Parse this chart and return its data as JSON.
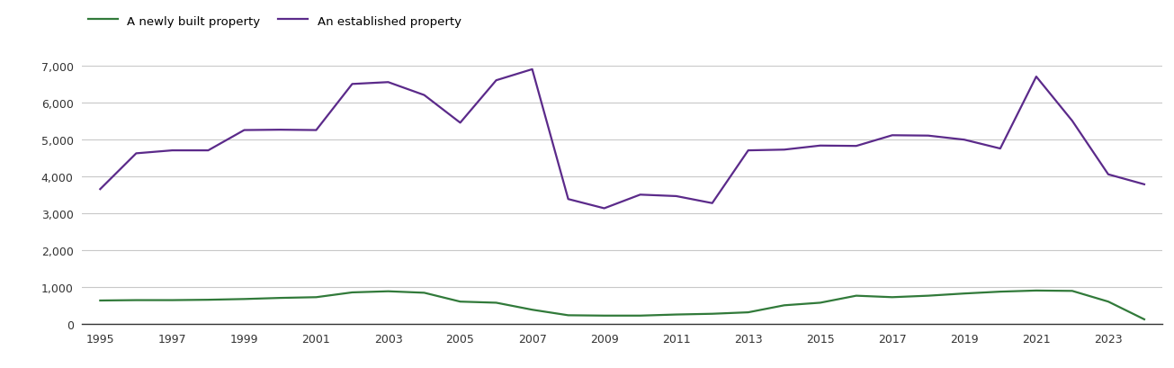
{
  "years": [
    1995,
    1996,
    1997,
    1998,
    1999,
    2000,
    2001,
    2002,
    2003,
    2004,
    2005,
    2006,
    2007,
    2008,
    2009,
    2010,
    2011,
    2012,
    2013,
    2014,
    2015,
    2016,
    2017,
    2018,
    2019,
    2020,
    2021,
    2022,
    2023,
    2024
  ],
  "new_homes": [
    630,
    640,
    640,
    650,
    670,
    700,
    720,
    850,
    880,
    840,
    600,
    570,
    380,
    230,
    220,
    220,
    250,
    270,
    310,
    500,
    570,
    760,
    720,
    760,
    820,
    870,
    900,
    890,
    600,
    120
  ],
  "established_homes": [
    3650,
    4620,
    4700,
    4700,
    5250,
    5260,
    5250,
    6500,
    6550,
    6200,
    5450,
    6600,
    6900,
    3380,
    3130,
    3500,
    3460,
    3270,
    4700,
    4720,
    4830,
    4820,
    5110,
    5100,
    4990,
    4750,
    6700,
    5500,
    4050,
    3780
  ],
  "new_homes_color": "#317a3a",
  "established_homes_color": "#5b2a8a",
  "new_homes_label": "A newly built property",
  "established_homes_label": "An established property",
  "ylim": [
    0,
    7000
  ],
  "yticks": [
    0,
    1000,
    2000,
    3000,
    4000,
    5000,
    6000,
    7000
  ],
  "xtick_years": [
    1995,
    1997,
    1999,
    2001,
    2003,
    2005,
    2007,
    2009,
    2011,
    2013,
    2015,
    2017,
    2019,
    2021,
    2023
  ],
  "line_width": 1.6,
  "background_color": "#ffffff",
  "grid_color": "#c8c8c8"
}
